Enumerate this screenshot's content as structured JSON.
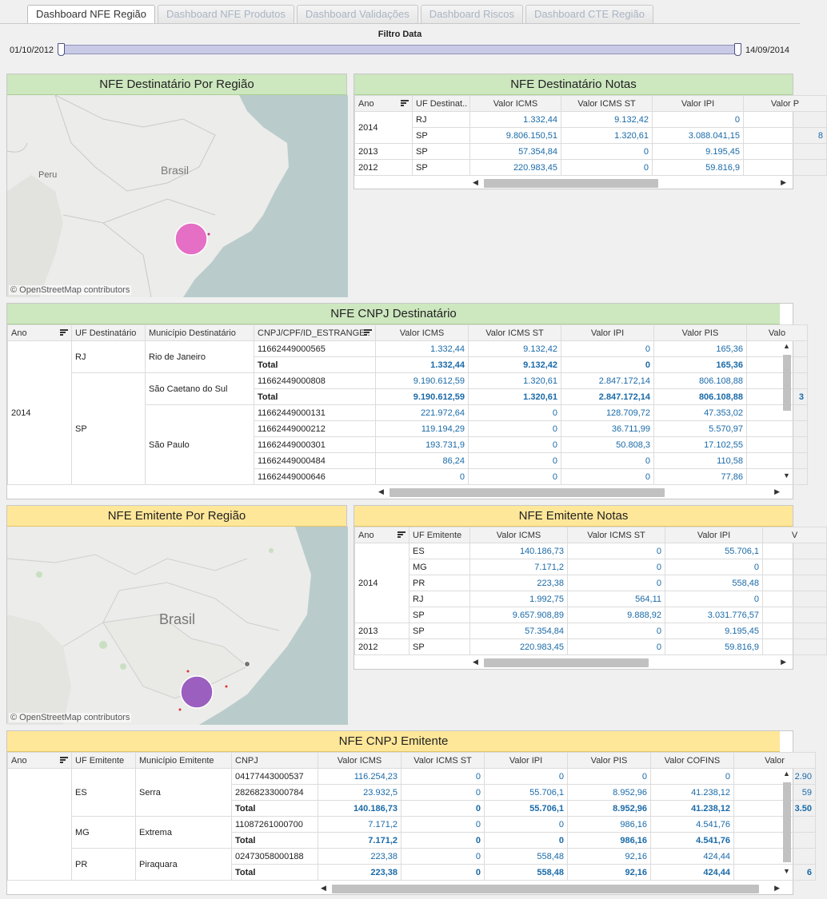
{
  "tabs": [
    "Dashboard NFE Região",
    "Dashboard NFE Produtos",
    "Dashboard Validações",
    "Dashboard Riscos",
    "Dashboard CTE Região"
  ],
  "filter": {
    "title": "Filtro Data",
    "start": "01/10/2012",
    "end": "14/09/2014"
  },
  "panels": {
    "dest_map": {
      "title": "NFE Destinatário Por Região",
      "labels": {
        "country1": "Brasil",
        "country2": "Peru"
      },
      "credit": "© OpenStreetMap contributors"
    },
    "dest_notes": {
      "title": "NFE Destinatário Notas"
    },
    "dest_cnpj": {
      "title": "NFE CNPJ Destinatário"
    },
    "emit_map": {
      "title": "NFE Emitente Por Região",
      "labels": {
        "country1": "Brasil"
      },
      "credit": "© OpenStreetMap contributors"
    },
    "emit_notes": {
      "title": "NFE Emitente Notas"
    },
    "emit_cnpj": {
      "title": "NFE CNPJ Emitente"
    }
  },
  "dest_notes_table": {
    "headers": [
      "Ano",
      "UF Destinat..",
      "Valor ICMS",
      "Valor ICMS ST",
      "Valor IPI",
      "Valor P"
    ],
    "groups": [
      {
        "ano": "2014",
        "rows": [
          [
            "RJ",
            "1.332,44",
            "9.132,42",
            "0",
            ""
          ],
          [
            "SP",
            "9.806.150,51",
            "1.320,61",
            "3.088.041,15",
            "8"
          ]
        ]
      },
      {
        "ano": "2013",
        "rows": [
          [
            "SP",
            "57.354,84",
            "0",
            "9.195,45",
            ""
          ]
        ]
      },
      {
        "ano": "2012",
        "rows": [
          [
            "SP",
            "220.983,45",
            "0",
            "59.816,9",
            ""
          ]
        ]
      }
    ]
  },
  "dest_cnpj_table": {
    "headers": [
      "Ano",
      "UF Destinatário",
      "Município Destinatário",
      "CNPJ/CPF/ID_ESTRANGE..",
      "Valor ICMS",
      "Valor ICMS ST",
      "Valor IPI",
      "Valor PIS",
      "Valo"
    ],
    "ano": "2014",
    "ufs": [
      {
        "uf": "RJ",
        "municipios": [
          {
            "nome": "Rio de Janeiro",
            "rows": [
              [
                "11662449000565",
                "1.332,44",
                "9.132,42",
                "0",
                "165,36",
                ""
              ]
            ],
            "total": [
              "Total",
              "1.332,44",
              "9.132,42",
              "0",
              "165,36",
              ""
            ]
          }
        ]
      },
      {
        "uf": "SP",
        "municipios": [
          {
            "nome": "São Caetano do Sul",
            "rows": [
              [
                "11662449000808",
                "9.190.612,59",
                "1.320,61",
                "2.847.172,14",
                "806.108,88",
                ""
              ]
            ],
            "total": [
              "Total",
              "9.190.612,59",
              "1.320,61",
              "2.847.172,14",
              "806.108,88",
              "3"
            ]
          },
          {
            "nome": "São Paulo",
            "rows": [
              [
                "11662449000131",
                "221.972,64",
                "0",
                "128.709,72",
                "47.353,02",
                ""
              ],
              [
                "11662449000212",
                "119.194,29",
                "0",
                "36.711,99",
                "5.570,97",
                ""
              ],
              [
                "11662449000301",
                "193.731,9",
                "0",
                "50.808,3",
                "17.102,55",
                ""
              ],
              [
                "11662449000484",
                "86,24",
                "0",
                "0",
                "110,58",
                ""
              ],
              [
                "11662449000646",
                "0",
                "0",
                "0",
                "77,86",
                ""
              ]
            ]
          }
        ]
      }
    ]
  },
  "emit_notes_table": {
    "headers": [
      "Ano",
      "UF Emitente",
      "Valor ICMS",
      "Valor ICMS ST",
      "Valor IPI",
      "V"
    ],
    "groups": [
      {
        "ano": "2014",
        "rows": [
          [
            "ES",
            "140.186,73",
            "0",
            "55.706,1",
            ""
          ],
          [
            "MG",
            "7.171,2",
            "0",
            "0",
            ""
          ],
          [
            "PR",
            "223,38",
            "0",
            "558,48",
            ""
          ],
          [
            "RJ",
            "1.992,75",
            "564,11",
            "0",
            ""
          ],
          [
            "SP",
            "9.657.908,89",
            "9.888,92",
            "3.031.776,57",
            ""
          ]
        ]
      },
      {
        "ano": "2013",
        "rows": [
          [
            "SP",
            "57.354,84",
            "0",
            "9.195,45",
            ""
          ]
        ]
      },
      {
        "ano": "2012",
        "rows": [
          [
            "SP",
            "220.983,45",
            "0",
            "59.816,9",
            ""
          ]
        ]
      }
    ]
  },
  "emit_cnpj_table": {
    "headers": [
      "Ano",
      "UF Emitente",
      "Município Emitente",
      "CNPJ",
      "Valor ICMS",
      "Valor ICMS ST",
      "Valor IPI",
      "Valor PIS",
      "Valor COFINS",
      "Valor"
    ],
    "ufs": [
      {
        "uf": "ES",
        "municipio": "Serra",
        "rows": [
          [
            "04177443000537",
            "116.254,23",
            "0",
            "0",
            "0",
            "0",
            "2.90"
          ],
          [
            "28268233000784",
            "23.932,5",
            "0",
            "55.706,1",
            "8.952,96",
            "41.238,12",
            "59"
          ],
          [
            "Total",
            "140.186,73",
            "0",
            "55.706,1",
            "8.952,96",
            "41.238,12",
            "3.50"
          ]
        ]
      },
      {
        "uf": "MG",
        "municipio": "Extrema",
        "rows": [
          [
            "11087261000700",
            "7.171,2",
            "0",
            "0",
            "986,16",
            "4.541,76",
            ""
          ],
          [
            "Total",
            "7.171,2",
            "0",
            "0",
            "986,16",
            "4.541,76",
            ""
          ]
        ]
      },
      {
        "uf": "PR",
        "municipio": "Piraquara",
        "rows": [
          [
            "02473058000188",
            "223,38",
            "0",
            "558,48",
            "92,16",
            "424,44",
            ""
          ],
          [
            "Total",
            "223,38",
            "0",
            "558,48",
            "92,16",
            "424,44",
            "6"
          ]
        ]
      }
    ]
  },
  "colors": {
    "green_header": "#cde7bf",
    "yellow_header": "#ffe799",
    "value_blue": "#1a6aa8",
    "bubble_pink": "#e46fc5",
    "bubble_purple": "#9a5fbf"
  }
}
